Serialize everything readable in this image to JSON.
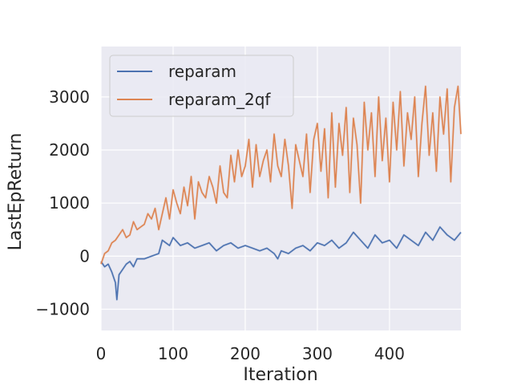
{
  "chart_data": {
    "type": "line",
    "title": "",
    "xlabel": "Iteration",
    "ylabel": "LastEpReturn",
    "xlim": [
      0,
      499
    ],
    "ylim": [
      -1400,
      3950
    ],
    "xticks": [
      0,
      100,
      200,
      300,
      400
    ],
    "xtick_labels": [
      "0",
      "100",
      "200",
      "300",
      "400"
    ],
    "yticks": [
      -1000,
      0,
      1000,
      2000,
      3000
    ],
    "ytick_labels": [
      "−1000",
      "0",
      "1000",
      "2000",
      "3000"
    ],
    "grid": true,
    "legend_position": "upper-left",
    "series": [
      {
        "name": "reparam",
        "color": "#4c72b0",
        "x": [
          0,
          5,
          10,
          15,
          20,
          22,
          25,
          30,
          35,
          40,
          45,
          50,
          60,
          70,
          80,
          85,
          90,
          95,
          100,
          110,
          120,
          130,
          140,
          150,
          160,
          170,
          180,
          190,
          200,
          210,
          220,
          230,
          240,
          245,
          250,
          260,
          270,
          280,
          290,
          300,
          310,
          320,
          330,
          340,
          350,
          360,
          370,
          380,
          390,
          400,
          410,
          420,
          430,
          440,
          450,
          460,
          470,
          480,
          490,
          499
        ],
        "values": [
          -100,
          -200,
          -150,
          -300,
          -500,
          -820,
          -350,
          -250,
          -150,
          -100,
          -200,
          -50,
          -50,
          0,
          50,
          300,
          250,
          200,
          350,
          200,
          250,
          150,
          200,
          250,
          100,
          200,
          250,
          150,
          200,
          150,
          100,
          150,
          50,
          -50,
          100,
          50,
          150,
          200,
          100,
          250,
          200,
          300,
          150,
          250,
          450,
          300,
          150,
          400,
          250,
          300,
          150,
          400,
          300,
          200,
          450,
          300,
          550,
          400,
          300,
          450
        ]
      },
      {
        "name": "reparam_2qf",
        "color": "#dd8452",
        "x": [
          0,
          5,
          10,
          15,
          20,
          25,
          30,
          35,
          40,
          45,
          50,
          55,
          60,
          65,
          70,
          75,
          80,
          85,
          90,
          95,
          100,
          105,
          110,
          115,
          120,
          125,
          130,
          135,
          140,
          145,
          150,
          155,
          160,
          165,
          170,
          175,
          180,
          185,
          190,
          195,
          200,
          205,
          210,
          215,
          220,
          225,
          230,
          235,
          240,
          245,
          250,
          255,
          260,
          265,
          270,
          275,
          280,
          285,
          290,
          295,
          300,
          305,
          310,
          315,
          320,
          325,
          330,
          335,
          340,
          345,
          350,
          355,
          360,
          365,
          370,
          375,
          380,
          385,
          390,
          395,
          400,
          405,
          410,
          415,
          420,
          425,
          430,
          435,
          440,
          445,
          450,
          455,
          460,
          465,
          470,
          475,
          480,
          485,
          490,
          495,
          499
        ],
        "values": [
          -150,
          50,
          100,
          250,
          300,
          400,
          500,
          350,
          400,
          650,
          500,
          550,
          600,
          800,
          700,
          900,
          500,
          800,
          1100,
          700,
          1250,
          1000,
          800,
          1300,
          950,
          1500,
          700,
          1400,
          1200,
          1100,
          1500,
          1300,
          1000,
          1700,
          1200,
          1100,
          1900,
          1400,
          2000,
          1500,
          1700,
          2200,
          1300,
          2100,
          1500,
          1800,
          2000,
          1400,
          2300,
          1700,
          1500,
          2200,
          1700,
          900,
          2100,
          1800,
          1500,
          2300,
          1200,
          2200,
          2500,
          1600,
          2400,
          1100,
          2700,
          1300,
          2500,
          1900,
          2800,
          1200,
          2600,
          2100,
          1000,
          2900,
          2000,
          2700,
          1500,
          3000,
          1800,
          2600,
          1400,
          2900,
          2000,
          3100,
          1700,
          2700,
          2200,
          3000,
          1500,
          2500,
          3200,
          1900,
          2700,
          1600,
          3000,
          2300,
          3150,
          1400,
          2800,
          3200,
          2300
        ]
      }
    ]
  }
}
